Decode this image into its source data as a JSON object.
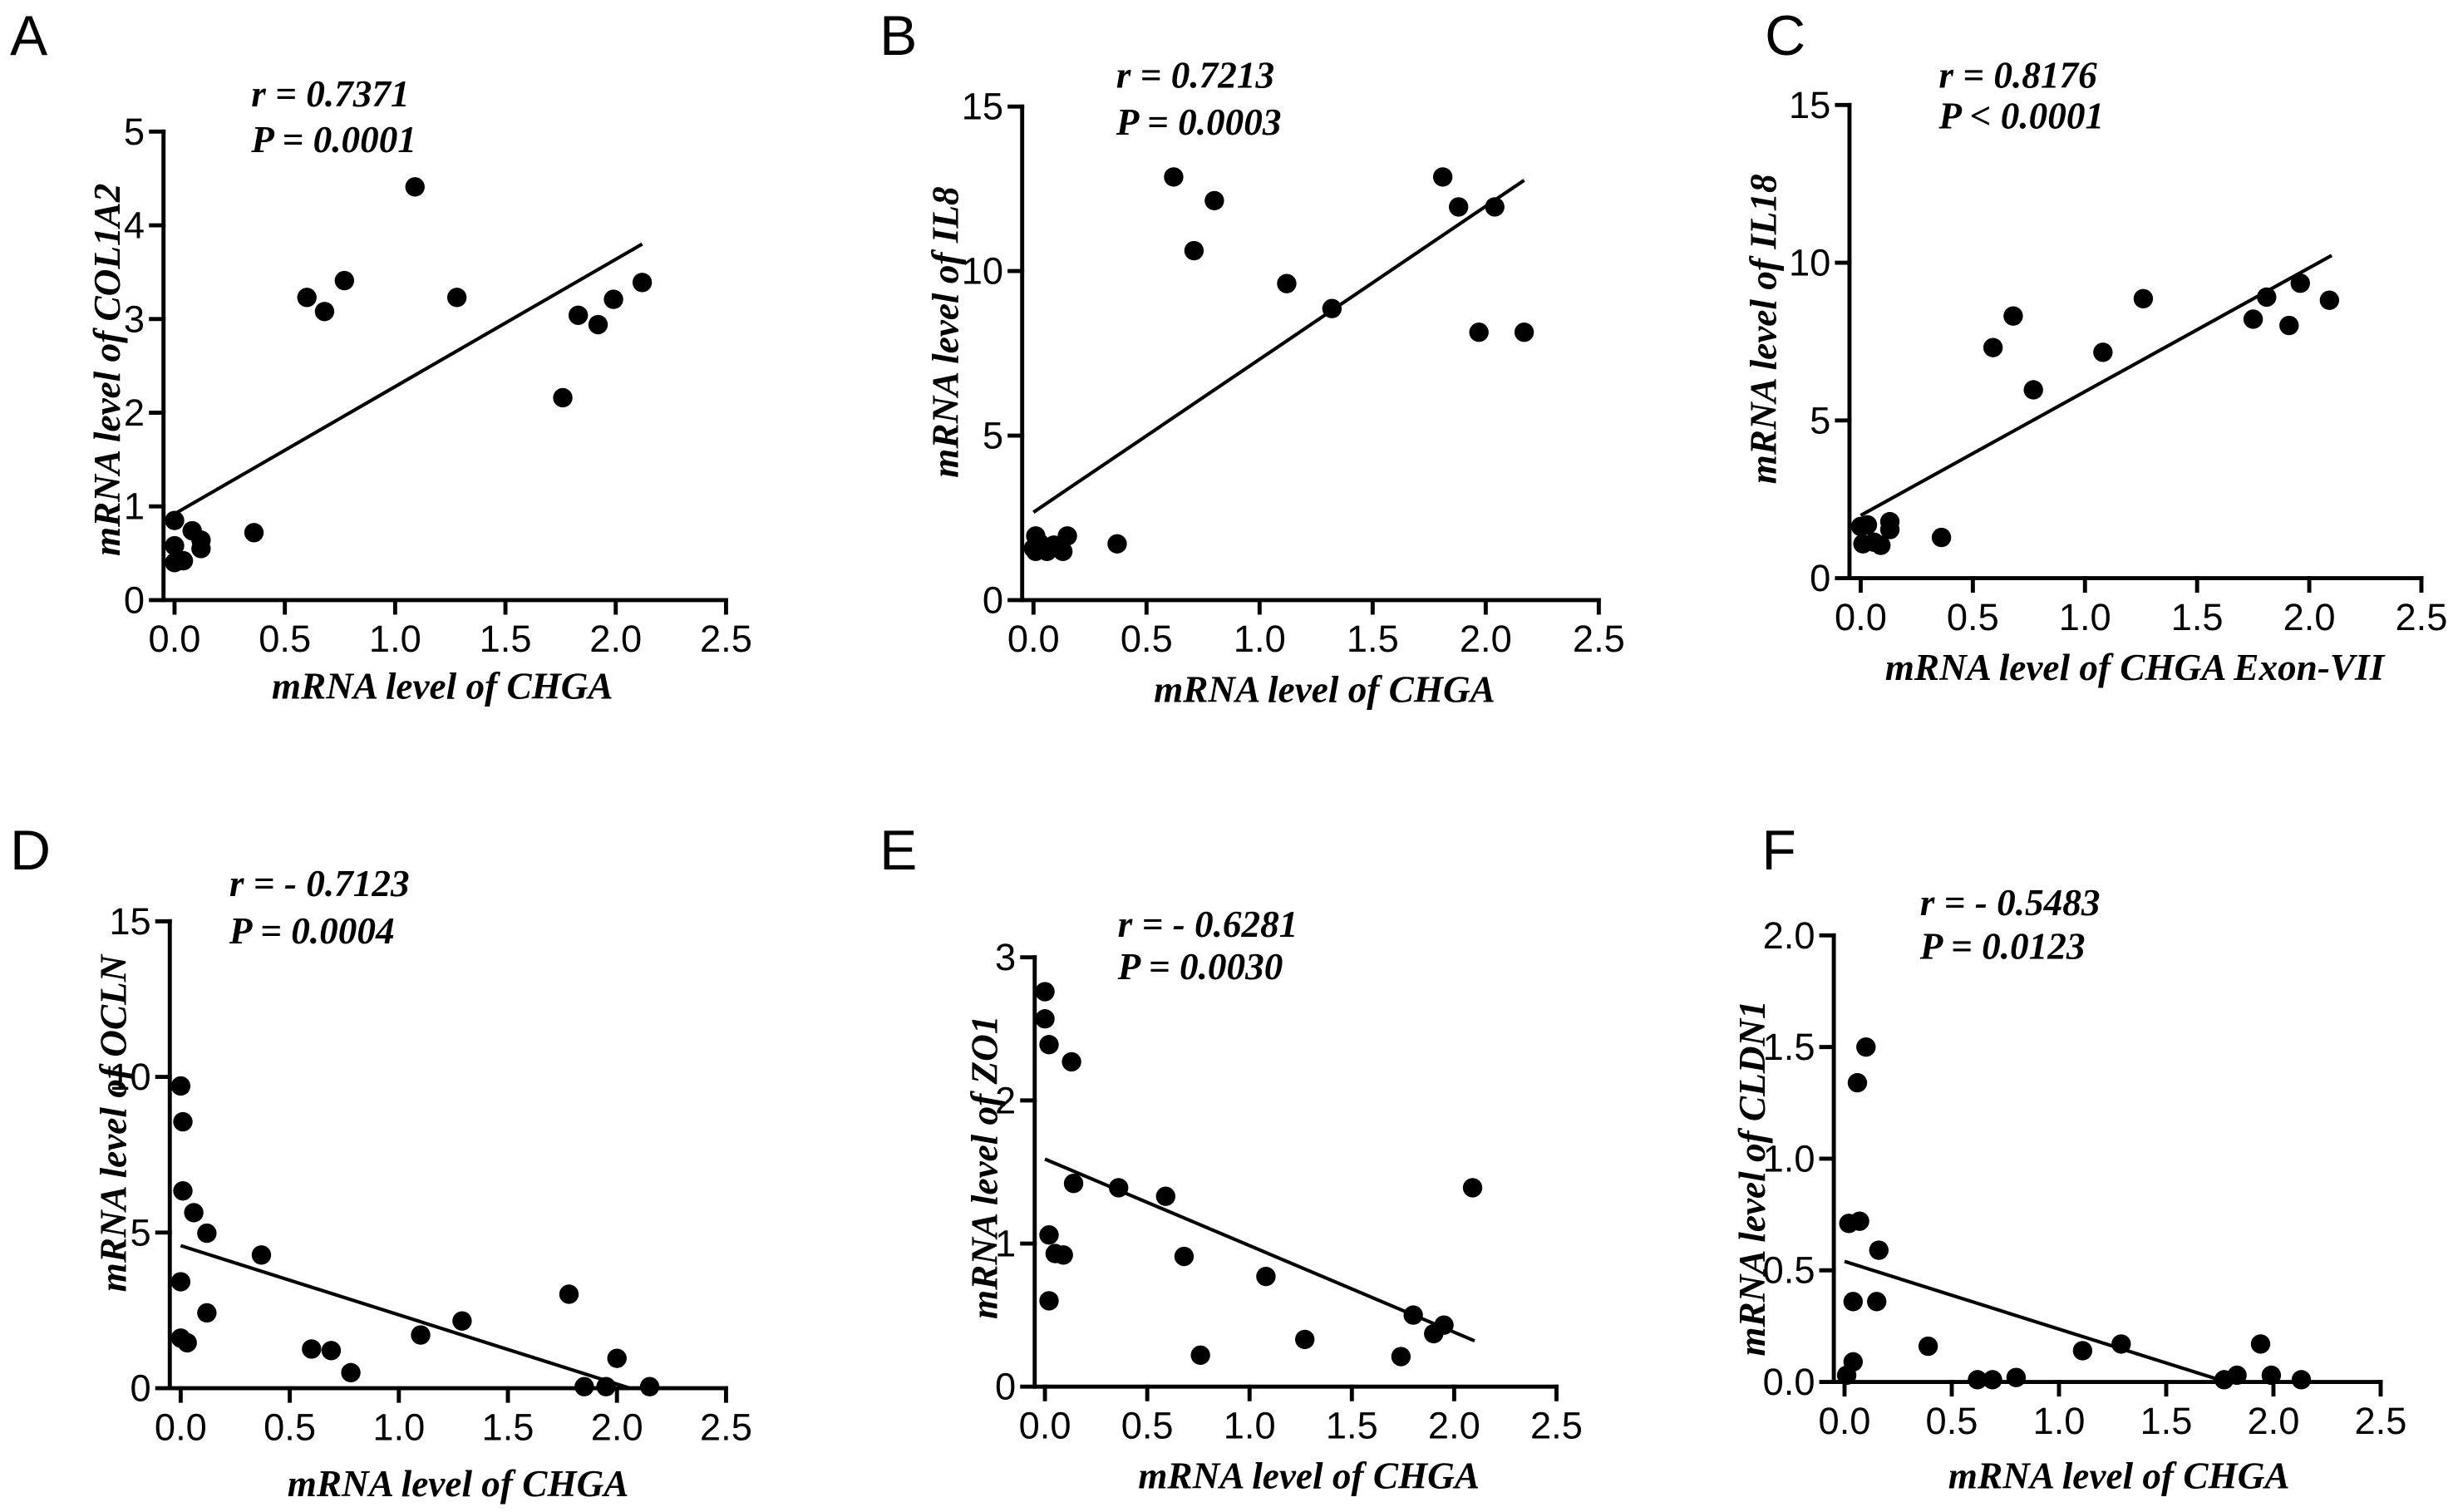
{
  "figure": {
    "background": "#ffffff",
    "ink": "#000000"
  },
  "chart_data": [
    {
      "type": "scatter",
      "panel_label": "A",
      "annotations": [
        "r = 0.7371",
        "P = 0.0001"
      ],
      "xlabel": "mRNA level of CHGA",
      "ylabel": "mRNA level of COL1A2",
      "xlim": [
        -0.05,
        2.5
      ],
      "ylim": [
        0,
        5
      ],
      "xticks": [
        "0.0",
        "0.5",
        "1.0",
        "1.5",
        "2.0",
        "2.5"
      ],
      "yticks": [
        "0",
        "1",
        "2",
        "3",
        "4",
        "5"
      ],
      "grid": false,
      "points": {
        "x": [
          0.0,
          0.0,
          0.0,
          0.04,
          0.08,
          0.12,
          0.12,
          0.36,
          0.6,
          0.68,
          0.77,
          1.09,
          1.28,
          1.76,
          1.83,
          1.92,
          1.99,
          2.12
        ],
        "y": [
          0.85,
          0.58,
          0.4,
          0.42,
          0.74,
          0.64,
          0.55,
          0.72,
          3.23,
          3.08,
          3.41,
          4.41,
          3.23,
          2.16,
          3.04,
          2.94,
          3.21,
          3.39
        ]
      },
      "fit_line": {
        "x": [
          0,
          2.12
        ],
        "y": [
          0.92,
          3.8
        ]
      }
    },
    {
      "type": "scatter",
      "panel_label": "B",
      "annotations": [
        "r = 0.7213",
        "P = 0.0003"
      ],
      "xlabel": "mRNA level of CHGA",
      "ylabel": "mRNA level of IL8",
      "xlim": [
        -0.05,
        2.5
      ],
      "ylim": [
        0,
        15
      ],
      "xticks": [
        "0.0",
        "0.5",
        "1.0",
        "1.5",
        "2.0",
        "2.5"
      ],
      "yticks": [
        "0",
        "5",
        "10",
        "15"
      ],
      "grid": false,
      "points": {
        "x": [
          0.0,
          0.01,
          0.01,
          0.03,
          0.06,
          0.09,
          0.13,
          0.15,
          0.37,
          0.62,
          0.71,
          0.8,
          1.12,
          1.32,
          1.81,
          1.88,
          1.97,
          2.04,
          2.17
        ],
        "y": [
          1.57,
          1.95,
          1.48,
          1.71,
          1.48,
          1.67,
          1.48,
          1.95,
          1.71,
          12.86,
          10.62,
          12.14,
          9.62,
          8.86,
          12.86,
          11.95,
          8.14,
          11.95,
          8.14
        ]
      },
      "fit_line": {
        "x": [
          0,
          2.17
        ],
        "y": [
          2.67,
          12.76
        ]
      }
    },
    {
      "type": "scatter",
      "panel_label": "C",
      "annotations": [
        "r = 0.8176",
        "P < 0.0001"
      ],
      "xlabel": "mRNA level of CHGA Exon-VII",
      "ylabel": "mRNA level of IL18",
      "xlim": [
        -0.05,
        2.5
      ],
      "ylim": [
        0,
        15
      ],
      "xticks": [
        "0.0",
        "0.5",
        "1.0",
        "1.5",
        "2.0",
        "2.5"
      ],
      "yticks": [
        "0",
        "5",
        "10",
        "15"
      ],
      "grid": false,
      "points": {
        "x": [
          0.0,
          0.03,
          0.01,
          0.06,
          0.09,
          0.13,
          0.13,
          0.36,
          0.59,
          0.68,
          0.77,
          1.08,
          1.26,
          1.75,
          1.81,
          1.91,
          1.96,
          2.09
        ],
        "y": [
          1.64,
          1.69,
          1.09,
          1.14,
          1.04,
          1.54,
          1.79,
          1.29,
          7.31,
          8.31,
          5.97,
          7.16,
          8.86,
          8.21,
          8.91,
          8.01,
          9.35,
          8.81
        ]
      },
      "fit_line": {
        "x": [
          0,
          2.1
        ],
        "y": [
          1.99,
          10.23
        ]
      }
    },
    {
      "type": "scatter",
      "panel_label": "D",
      "annotations": [
        "r = - 0.7123",
        "P = 0.0004"
      ],
      "xlabel": "mRNA level of CHGA",
      "ylabel": "mRNA level of OCLN",
      "xlim": [
        -0.05,
        2.5
      ],
      "ylim": [
        0,
        15
      ],
      "xticks": [
        "0.0",
        "0.5",
        "1.0",
        "1.5",
        "2.0",
        "2.5"
      ],
      "yticks": [
        "0",
        "5",
        "10",
        "15"
      ],
      "grid": false,
      "points": {
        "x": [
          0.0,
          0.01,
          0.01,
          0.0,
          0.0,
          0.03,
          0.06,
          0.12,
          0.12,
          0.37,
          0.6,
          0.69,
          0.78,
          1.1,
          1.29,
          1.78,
          1.85,
          1.95,
          2.0,
          2.15
        ],
        "y": [
          9.71,
          8.56,
          6.34,
          3.42,
          1.61,
          1.46,
          5.64,
          4.98,
          2.42,
          4.28,
          1.26,
          1.21,
          0.5,
          1.71,
          2.16,
          3.02,
          0.05,
          0.05,
          0.96,
          0.05
        ]
      },
      "fit_line": {
        "x": [
          0,
          2.06
        ],
        "y": [
          4.58,
          0
        ]
      }
    },
    {
      "type": "scatter",
      "panel_label": "E",
      "annotations": [
        "r = - 0.6281",
        "P = 0.0030"
      ],
      "xlabel": "mRNA level of CHGA",
      "ylabel": "mRNA level of ZO1",
      "xlim": [
        -0.05,
        2.5
      ],
      "ylim": [
        0,
        3
      ],
      "xticks": [
        "0.0",
        "0.5",
        "1.0",
        "1.5",
        "2.0",
        "2.5"
      ],
      "yticks": [
        "0",
        "1",
        "2",
        "3"
      ],
      "grid": false,
      "points": {
        "x": [
          0.0,
          0.0,
          0.02,
          0.13,
          0.02,
          0.02,
          0.05,
          0.09,
          0.14,
          0.36,
          0.59,
          0.68,
          0.76,
          1.08,
          1.27,
          1.74,
          1.8,
          1.9,
          1.95,
          2.09
        ],
        "y": [
          2.76,
          2.57,
          2.39,
          2.27,
          1.06,
          0.6,
          0.93,
          0.92,
          1.42,
          1.39,
          1.33,
          0.91,
          0.22,
          0.77,
          0.33,
          0.21,
          0.5,
          0.37,
          0.43,
          1.39
        ]
      },
      "fit_line": {
        "x": [
          0,
          2.1
        ],
        "y": [
          1.59,
          0.32
        ]
      }
    },
    {
      "type": "scatter",
      "panel_label": "F",
      "annotations": [
        "r = - 0.5483",
        "P = 0.0123"
      ],
      "xlabel": "mRNA level of CHGA",
      "ylabel": "mRNA level of CLDN1",
      "xlim": [
        -0.05,
        2.5
      ],
      "ylim": [
        0,
        2.0
      ],
      "xticks": [
        "0.0",
        "0.5",
        "1.0",
        "1.5",
        "2.0",
        "2.5"
      ],
      "yticks": [
        "0.0",
        "0.5",
        "1.0",
        "1.5",
        "2.0"
      ],
      "grid": false,
      "points": {
        "x": [
          0.1,
          0.06,
          0.02,
          0.07,
          0.04,
          0.04,
          0.01,
          0.16,
          0.15,
          0.39,
          0.62,
          0.69,
          0.8,
          1.11,
          1.29,
          1.77,
          1.83,
          1.94,
          1.99,
          2.13
        ],
        "y": [
          1.5,
          1.34,
          0.71,
          0.72,
          0.36,
          0.09,
          0.03,
          0.59,
          0.36,
          0.16,
          0.01,
          0.01,
          0.02,
          0.14,
          0.17,
          0.01,
          0.03,
          0.17,
          0.03,
          0.01
        ]
      },
      "fit_line": {
        "x": [
          0,
          1.78
        ],
        "y": [
          0.54,
          0
        ]
      }
    }
  ]
}
